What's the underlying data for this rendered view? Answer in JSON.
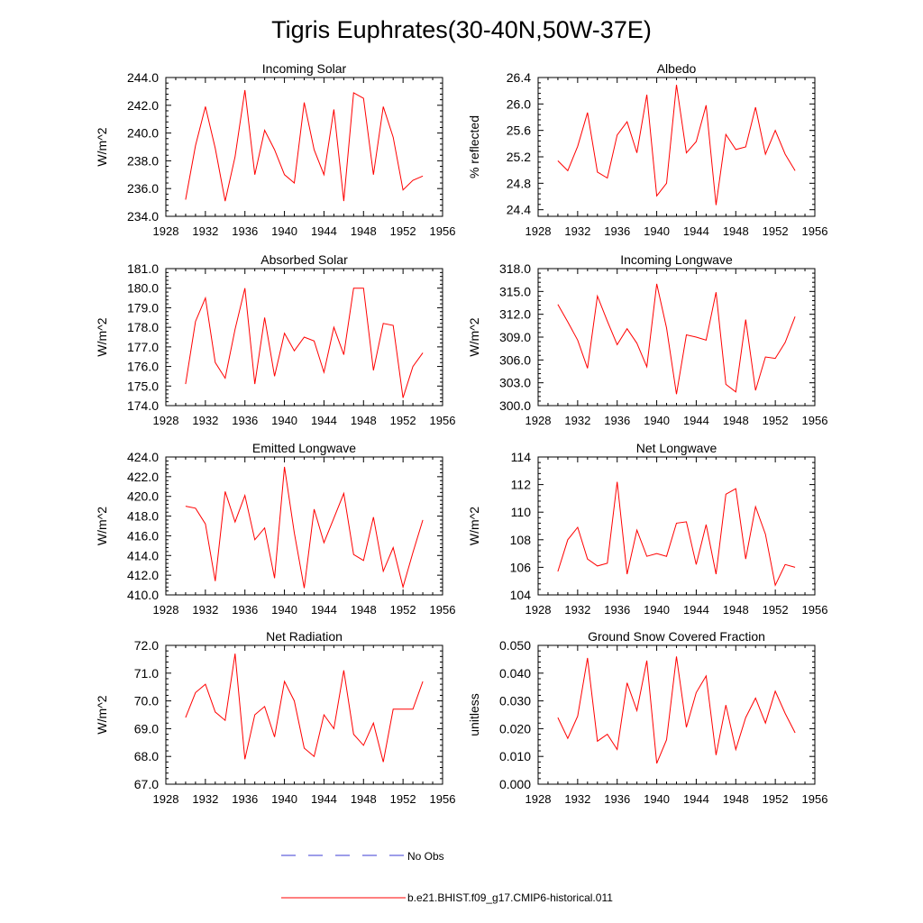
{
  "figure": {
    "title": "Tigris Euphrates(30-40N,50W-37E)",
    "line_color": "#ff0000",
    "obs_color": "#3b3bd6"
  },
  "legend": {
    "obs_label": "No Obs",
    "model_label": "b.e21.BHIST.f09_g17.CMIP6-historical.011"
  },
  "chart_data": [
    {
      "type": "line",
      "title": "Incoming Solar",
      "ylabel": "W/m^2",
      "xlim": [
        1928,
        1956
      ],
      "xticks": [
        "1928",
        "1932",
        "1936",
        "1940",
        "1944",
        "1948",
        "1952",
        "1956"
      ],
      "ylim": [
        234,
        244
      ],
      "yticks": [
        "234.0",
        "236.0",
        "238.0",
        "240.0",
        "242.0",
        "244.0"
      ],
      "x": [
        1930,
        1931,
        1932,
        1933,
        1934,
        1935,
        1936,
        1937,
        1938,
        1939,
        1940,
        1941,
        1942,
        1943,
        1944,
        1945,
        1946,
        1947,
        1948,
        1949,
        1950,
        1951,
        1952,
        1953,
        1954
      ],
      "y": [
        235.2,
        239.1,
        241.9,
        238.9,
        235.1,
        238.3,
        243.1,
        237.0,
        240.2,
        238.8,
        237.0,
        236.4,
        242.2,
        238.8,
        237.0,
        241.7,
        235.1,
        242.9,
        242.5,
        237.0,
        241.9,
        239.7,
        235.9,
        236.6,
        236.9
      ]
    },
    {
      "type": "line",
      "title": "Albedo",
      "ylabel": "% reflected",
      "xlim": [
        1928,
        1956
      ],
      "xticks": [
        "1928",
        "1932",
        "1936",
        "1940",
        "1944",
        "1948",
        "1952",
        "1956"
      ],
      "ylim": [
        24.3,
        26.4
      ],
      "yticks": [
        "24.4",
        "24.8",
        "25.2",
        "25.6",
        "26.0",
        "26.4"
      ],
      "x": [
        1930,
        1931,
        1932,
        1933,
        1934,
        1935,
        1936,
        1937,
        1938,
        1939,
        1940,
        1941,
        1942,
        1943,
        1944,
        1945,
        1946,
        1947,
        1948,
        1949,
        1950,
        1951,
        1952,
        1953,
        1954
      ],
      "y": [
        25.14,
        24.99,
        25.36,
        25.87,
        24.97,
        24.88,
        25.53,
        25.73,
        25.26,
        26.14,
        24.61,
        24.8,
        26.29,
        25.26,
        25.43,
        25.98,
        24.47,
        25.54,
        25.31,
        25.35,
        25.95,
        25.24,
        25.6,
        25.24,
        24.99
      ]
    },
    {
      "type": "line",
      "title": "Absorbed Solar",
      "ylabel": "W/m^2",
      "xlim": [
        1928,
        1956
      ],
      "xticks": [
        "1928",
        "1932",
        "1936",
        "1940",
        "1944",
        "1948",
        "1952",
        "1956"
      ],
      "ylim": [
        174,
        181
      ],
      "yticks": [
        "174.0",
        "175.0",
        "176.0",
        "177.0",
        "178.0",
        "179.0",
        "180.0",
        "181.0"
      ],
      "x": [
        1930,
        1931,
        1932,
        1933,
        1934,
        1935,
        1936,
        1937,
        1938,
        1939,
        1940,
        1941,
        1942,
        1943,
        1944,
        1945,
        1946,
        1947,
        1948,
        1949,
        1950,
        1951,
        1952,
        1953,
        1954
      ],
      "y": [
        175.1,
        178.3,
        179.5,
        176.2,
        175.4,
        177.9,
        180.0,
        175.1,
        178.5,
        175.5,
        177.7,
        176.8,
        177.5,
        177.3,
        175.7,
        178.0,
        176.6,
        180.0,
        180.0,
        175.8,
        178.2,
        178.1,
        174.4,
        176.0,
        176.7
      ]
    },
    {
      "type": "line",
      "title": "Incoming Longwave",
      "ylabel": "W/m^2",
      "xlim": [
        1928,
        1956
      ],
      "xticks": [
        "1928",
        "1932",
        "1936",
        "1940",
        "1944",
        "1948",
        "1952",
        "1956"
      ],
      "ylim": [
        300,
        318
      ],
      "yticks": [
        "300.0",
        "303.0",
        "306.0",
        "309.0",
        "312.0",
        "315.0",
        "318.0"
      ],
      "x": [
        1930,
        1931,
        1932,
        1933,
        1934,
        1935,
        1936,
        1937,
        1938,
        1939,
        1940,
        1941,
        1942,
        1943,
        1944,
        1945,
        1946,
        1947,
        1948,
        1949,
        1950,
        1951,
        1952,
        1953,
        1954
      ],
      "y": [
        313.3,
        311.0,
        308.6,
        304.9,
        314.4,
        311.1,
        308.0,
        310.1,
        308.2,
        305.1,
        316.0,
        310.2,
        301.5,
        309.3,
        309.0,
        308.6,
        314.9,
        302.8,
        301.8,
        311.3,
        302.0,
        306.4,
        306.2,
        308.3,
        311.7
      ]
    },
    {
      "type": "line",
      "title": "Emitted Longwave",
      "ylabel": "W/m^2",
      "xlim": [
        1928,
        1956
      ],
      "xticks": [
        "1928",
        "1932",
        "1936",
        "1940",
        "1944",
        "1948",
        "1952",
        "1956"
      ],
      "ylim": [
        410,
        424
      ],
      "yticks": [
        "410.0",
        "412.0",
        "414.0",
        "416.0",
        "418.0",
        "420.0",
        "422.0",
        "424.0"
      ],
      "x": [
        1930,
        1931,
        1932,
        1933,
        1934,
        1935,
        1936,
        1937,
        1938,
        1939,
        1940,
        1941,
        1942,
        1943,
        1944,
        1945,
        1946,
        1947,
        1948,
        1949,
        1950,
        1951,
        1952,
        1953,
        1954
      ],
      "y": [
        419.0,
        418.8,
        417.2,
        411.4,
        420.5,
        417.4,
        420.1,
        415.6,
        416.8,
        411.7,
        423.0,
        416.3,
        410.7,
        418.7,
        415.3,
        417.8,
        420.3,
        414.1,
        413.5,
        417.9,
        412.4,
        414.8,
        410.8,
        414.3,
        417.6
      ]
    },
    {
      "type": "line",
      "title": "Net Longwave",
      "ylabel": "W/m^2",
      "xlim": [
        1928,
        1956
      ],
      "xticks": [
        "1928",
        "1932",
        "1936",
        "1940",
        "1944",
        "1948",
        "1952",
        "1956"
      ],
      "ylim": [
        104,
        114
      ],
      "yticks": [
        "104",
        "106",
        "108",
        "110",
        "112",
        "114"
      ],
      "x": [
        1930,
        1931,
        1932,
        1933,
        1934,
        1935,
        1936,
        1937,
        1938,
        1939,
        1940,
        1941,
        1942,
        1943,
        1944,
        1945,
        1946,
        1947,
        1948,
        1949,
        1950,
        1951,
        1952,
        1953,
        1954
      ],
      "y": [
        105.7,
        108.0,
        108.9,
        106.6,
        106.1,
        106.3,
        112.2,
        105.5,
        108.7,
        106.8,
        107.0,
        106.8,
        109.2,
        109.3,
        106.2,
        109.1,
        105.5,
        111.3,
        111.7,
        106.6,
        110.4,
        108.4,
        104.7,
        106.2,
        106.0
      ]
    },
    {
      "type": "line",
      "title": "Net Radiation",
      "ylabel": "W/m^2",
      "xlim": [
        1928,
        1956
      ],
      "xticks": [
        "1928",
        "1932",
        "1936",
        "1940",
        "1944",
        "1948",
        "1952",
        "1956"
      ],
      "ylim": [
        67,
        72
      ],
      "yticks": [
        "67.0",
        "68.0",
        "69.0",
        "70.0",
        "71.0",
        "72.0"
      ],
      "x": [
        1930,
        1931,
        1932,
        1933,
        1934,
        1935,
        1936,
        1937,
        1938,
        1939,
        1940,
        1941,
        1942,
        1943,
        1944,
        1945,
        1946,
        1947,
        1948,
        1949,
        1950,
        1951,
        1952,
        1953,
        1954
      ],
      "y": [
        69.4,
        70.3,
        70.6,
        69.6,
        69.3,
        71.7,
        67.9,
        69.5,
        69.8,
        68.7,
        70.7,
        70.0,
        68.3,
        68.0,
        69.5,
        69.0,
        71.1,
        68.8,
        68.4,
        69.2,
        67.8,
        69.7,
        69.7,
        69.7,
        70.7
      ]
    },
    {
      "type": "line",
      "title": "Ground Snow Covered Fraction",
      "ylabel": "unitless",
      "xlim": [
        1928,
        1956
      ],
      "xticks": [
        "1928",
        "1932",
        "1936",
        "1940",
        "1944",
        "1948",
        "1952",
        "1956"
      ],
      "ylim": [
        0,
        0.05
      ],
      "yticks": [
        "0.000",
        "0.010",
        "0.020",
        "0.030",
        "0.040",
        "0.050"
      ],
      "x": [
        1930,
        1931,
        1932,
        1933,
        1934,
        1935,
        1936,
        1937,
        1938,
        1939,
        1940,
        1941,
        1942,
        1943,
        1944,
        1945,
        1946,
        1947,
        1948,
        1949,
        1950,
        1951,
        1952,
        1953,
        1954
      ],
      "y": [
        0.024,
        0.0165,
        0.0245,
        0.0455,
        0.0155,
        0.018,
        0.0125,
        0.0365,
        0.0265,
        0.0445,
        0.0075,
        0.016,
        0.046,
        0.0205,
        0.033,
        0.039,
        0.0105,
        0.0285,
        0.0125,
        0.024,
        0.031,
        0.022,
        0.0335,
        0.0255,
        0.0185
      ]
    }
  ]
}
